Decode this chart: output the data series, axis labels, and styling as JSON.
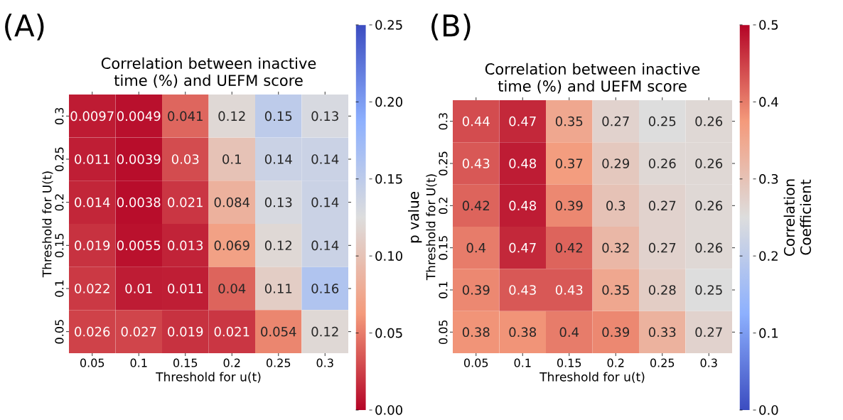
{
  "chart_data": [
    {
      "type": "heatmap",
      "title": "Correlation between inactive time (%) and UEFM score",
      "xlabel": "Threshold for u(t)",
      "ylabel": "Threshold for U(t)",
      "clabel": "p value",
      "annotations": [
        "(A)"
      ],
      "categories": [
        "0.05",
        "0.1",
        "0.15",
        "0.2",
        "0.25",
        "0.3"
      ],
      "y_categories": [
        "0.3",
        "0.25",
        "0.2",
        "0.15",
        "0.1",
        "0.05"
      ],
      "cells": [
        [
          0.0097,
          0.0049,
          0.041,
          0.12,
          0.15,
          0.13
        ],
        [
          0.011,
          0.0039,
          0.03,
          0.1,
          0.14,
          0.14
        ],
        [
          0.014,
          0.0038,
          0.021,
          0.084,
          0.13,
          0.14
        ],
        [
          0.019,
          0.0055,
          0.013,
          0.069,
          0.12,
          0.14
        ],
        [
          0.022,
          0.01,
          0.011,
          0.04,
          0.11,
          0.16
        ],
        [
          0.026,
          0.027,
          0.019,
          0.021,
          0.054,
          0.12
        ]
      ],
      "data_labels": true,
      "clim": [
        0,
        0.25
      ],
      "cticks": [
        {
          "value": 0,
          "label": "0.00"
        },
        {
          "value": 0.05,
          "label": "0.05"
        },
        {
          "value": 0.1,
          "label": "0.10"
        },
        {
          "value": 0.15,
          "label": "0.15"
        },
        {
          "value": 0.2,
          "label": "0.20"
        },
        {
          "value": 0.25,
          "label": "0.25"
        }
      ],
      "colors": [
        "#b40426",
        "#f49a7b",
        "#dddddd",
        "#8db0fe",
        "#3b4cc0"
      ]
    },
    {
      "type": "heatmap",
      "title": "Correlation between inactive time (%) and UEFM score",
      "xlabel": "Threshold for u(t)",
      "ylabel": "Threshold for U(t)",
      "clabel": "Correlation Coefficient",
      "annotations": [
        "(B)"
      ],
      "categories": [
        "0.05",
        "0.1",
        "0.15",
        "0.2",
        "0.25",
        "0.3"
      ],
      "y_categories": [
        "0.3",
        "0.25",
        "0.2",
        "0.15",
        "0.1",
        "0.05"
      ],
      "cells": [
        [
          0.44,
          0.47,
          0.35,
          0.27,
          0.25,
          0.26
        ],
        [
          0.43,
          0.48,
          0.37,
          0.29,
          0.26,
          0.26
        ],
        [
          0.42,
          0.48,
          0.39,
          0.3,
          0.27,
          0.26
        ],
        [
          0.4,
          0.47,
          0.42,
          0.32,
          0.27,
          0.26
        ],
        [
          0.39,
          0.43,
          0.43,
          0.35,
          0.28,
          0.25
        ],
        [
          0.38,
          0.38,
          0.4,
          0.39,
          0.33,
          0.27
        ]
      ],
      "data_labels": true,
      "clim": [
        0,
        0.5
      ],
      "cticks": [
        {
          "value": 0,
          "label": "0.0"
        },
        {
          "value": 0.1,
          "label": "0.1"
        },
        {
          "value": 0.2,
          "label": "0.2"
        },
        {
          "value": 0.3,
          "label": "0.3"
        },
        {
          "value": 0.4,
          "label": "0.4"
        },
        {
          "value": 0.5,
          "label": "0.5"
        }
      ],
      "colors": [
        "#3b4cc0",
        "#8db0fe",
        "#dddddd",
        "#f49a7b",
        "#b40426"
      ]
    }
  ]
}
